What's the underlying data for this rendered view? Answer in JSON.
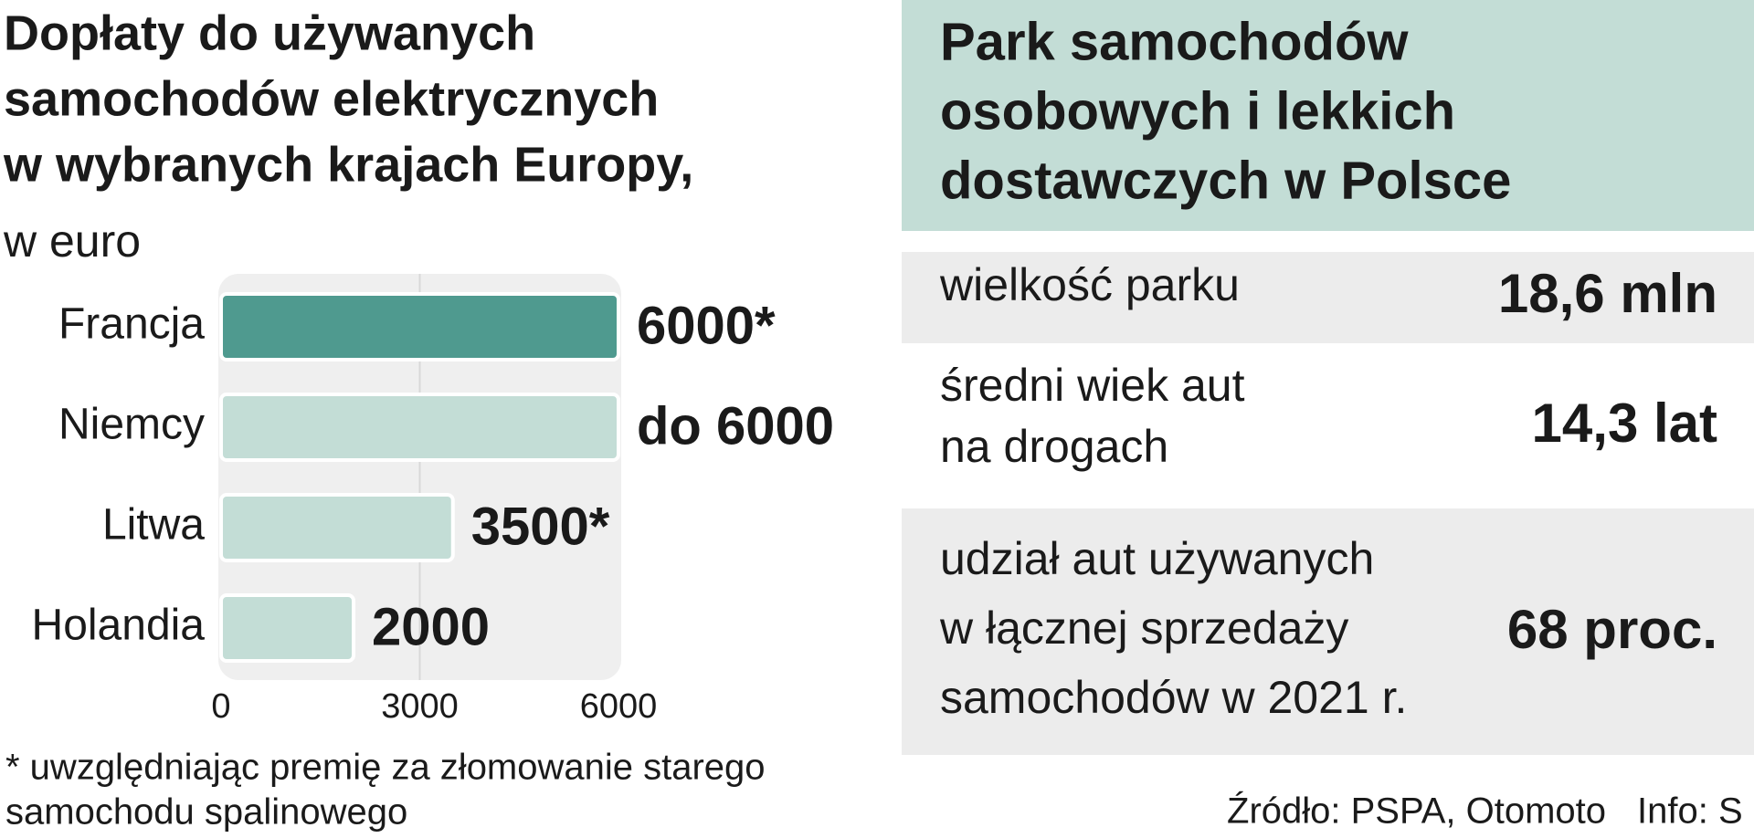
{
  "chart_data": {
    "type": "bar",
    "orientation": "horizontal",
    "title": [
      "Dopłaty do używanych",
      "samochodów elektrycznych",
      "w wybranych krajach Europy,"
    ],
    "subtitle": "w euro",
    "categories": [
      "Francja",
      "Niemcy",
      "Litwa",
      "Holandia"
    ],
    "values": [
      6000,
      6000,
      3500,
      2000
    ],
    "value_labels": [
      "6000*",
      "do 6000",
      "3500*",
      "2000"
    ],
    "colors": [
      "#4f9a8f",
      "#c3ddd6",
      "#c3ddd6",
      "#c3ddd6"
    ],
    "xlim": [
      0,
      6000
    ],
    "xticks": [
      0,
      3000,
      6000
    ],
    "grid": true,
    "footnote": [
      "* uwzględniając premię za złomowanie starego",
      "samochodu spalinowego"
    ]
  },
  "table": {
    "title": [
      "Park samochodów",
      "osobowych i lekkich",
      "dostawczych w Polsce"
    ],
    "rows": [
      {
        "label": [
          "wielkość parku"
        ],
        "value": "18,6 mln"
      },
      {
        "label": [
          "średni wiek aut",
          "na drogach"
        ],
        "value": "14,3 lat"
      },
      {
        "label": [
          "udział aut używanych",
          "w łącznej sprzedaży",
          "samochodów w 2021 r."
        ],
        "value": "68 proc."
      }
    ],
    "source": "Źródło: PSPA, Otomoto",
    "credit": "Info: S"
  }
}
